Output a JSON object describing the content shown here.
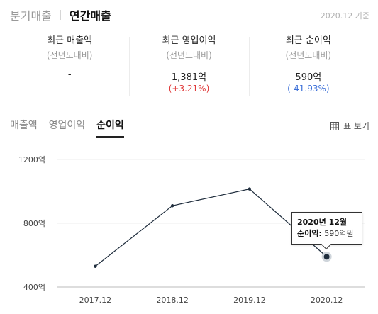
{
  "header": {
    "tabs": [
      {
        "label": "분기매출",
        "active": false
      },
      {
        "label": "연간매출",
        "active": true
      }
    ],
    "basis": "2020.12 기준"
  },
  "stats": [
    {
      "title": "최근 매출액",
      "sub": "(전년도대비)",
      "value": "-",
      "change": "",
      "direction": ""
    },
    {
      "title": "최근 영업이익",
      "sub": "(전년도대비)",
      "value": "1,381억",
      "change": "(+3.21%)",
      "direction": "up"
    },
    {
      "title": "최근 순이익",
      "sub": "(전년도대비)",
      "value": "590억",
      "change": "(-41.93%)",
      "direction": "down"
    }
  ],
  "metric_tabs": [
    {
      "label": "매출액",
      "active": false
    },
    {
      "label": "영업이익",
      "active": false
    },
    {
      "label": "순이익",
      "active": true
    }
  ],
  "table_view_label": "표 보기",
  "tooltip": {
    "title": "2020년 12월",
    "label": "순이익:",
    "value": "590억원"
  },
  "colors": {
    "line": "#1f2d3d",
    "up": "#e03a3a",
    "down": "#3b6fd8"
  },
  "chart_data": {
    "type": "line",
    "categories": [
      "2017.12",
      "2018.12",
      "2019.12",
      "2020.12"
    ],
    "series": [
      {
        "values": [
          530,
          910,
          1015,
          590
        ]
      }
    ],
    "yticks": [
      400,
      800,
      1200
    ],
    "ytick_labels": [
      "400억",
      "800억",
      "1200억"
    ],
    "ylim": [
      400,
      1200
    ],
    "grid": "horizontal",
    "highlight_index": 3
  }
}
